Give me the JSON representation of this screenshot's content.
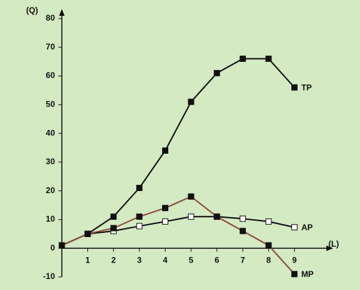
{
  "chart_data": {
    "type": "line",
    "y_label": "(Q)",
    "x_label": "(L)",
    "x": [
      0,
      1,
      2,
      3,
      4,
      5,
      6,
      7,
      8,
      9
    ],
    "series": [
      {
        "name": "TP",
        "color": "#111111",
        "marker_fill": "#111111",
        "values": [
          1,
          5,
          11,
          21,
          34,
          51,
          61,
          66,
          66,
          56
        ]
      },
      {
        "name": "AP",
        "color": "#111111",
        "marker_fill": "#ffffff",
        "values": [
          null,
          5,
          6,
          7.7,
          9.3,
          11,
          11,
          10.3,
          9.3,
          7.3
        ]
      },
      {
        "name": "MP",
        "color": "#8b4a3c",
        "marker_fill": "#111111",
        "values": [
          1,
          5,
          7,
          11,
          14,
          18,
          11,
          6,
          1,
          -9
        ]
      }
    ],
    "xlim": [
      0,
      10.5
    ],
    "ylim": [
      -10,
      80
    ],
    "xticks": [
      1,
      2,
      3,
      4,
      5,
      6,
      7,
      8,
      9
    ],
    "yticks": [
      -10,
      0,
      10,
      20,
      30,
      40,
      50,
      60,
      70,
      80
    ],
    "grid": false
  }
}
